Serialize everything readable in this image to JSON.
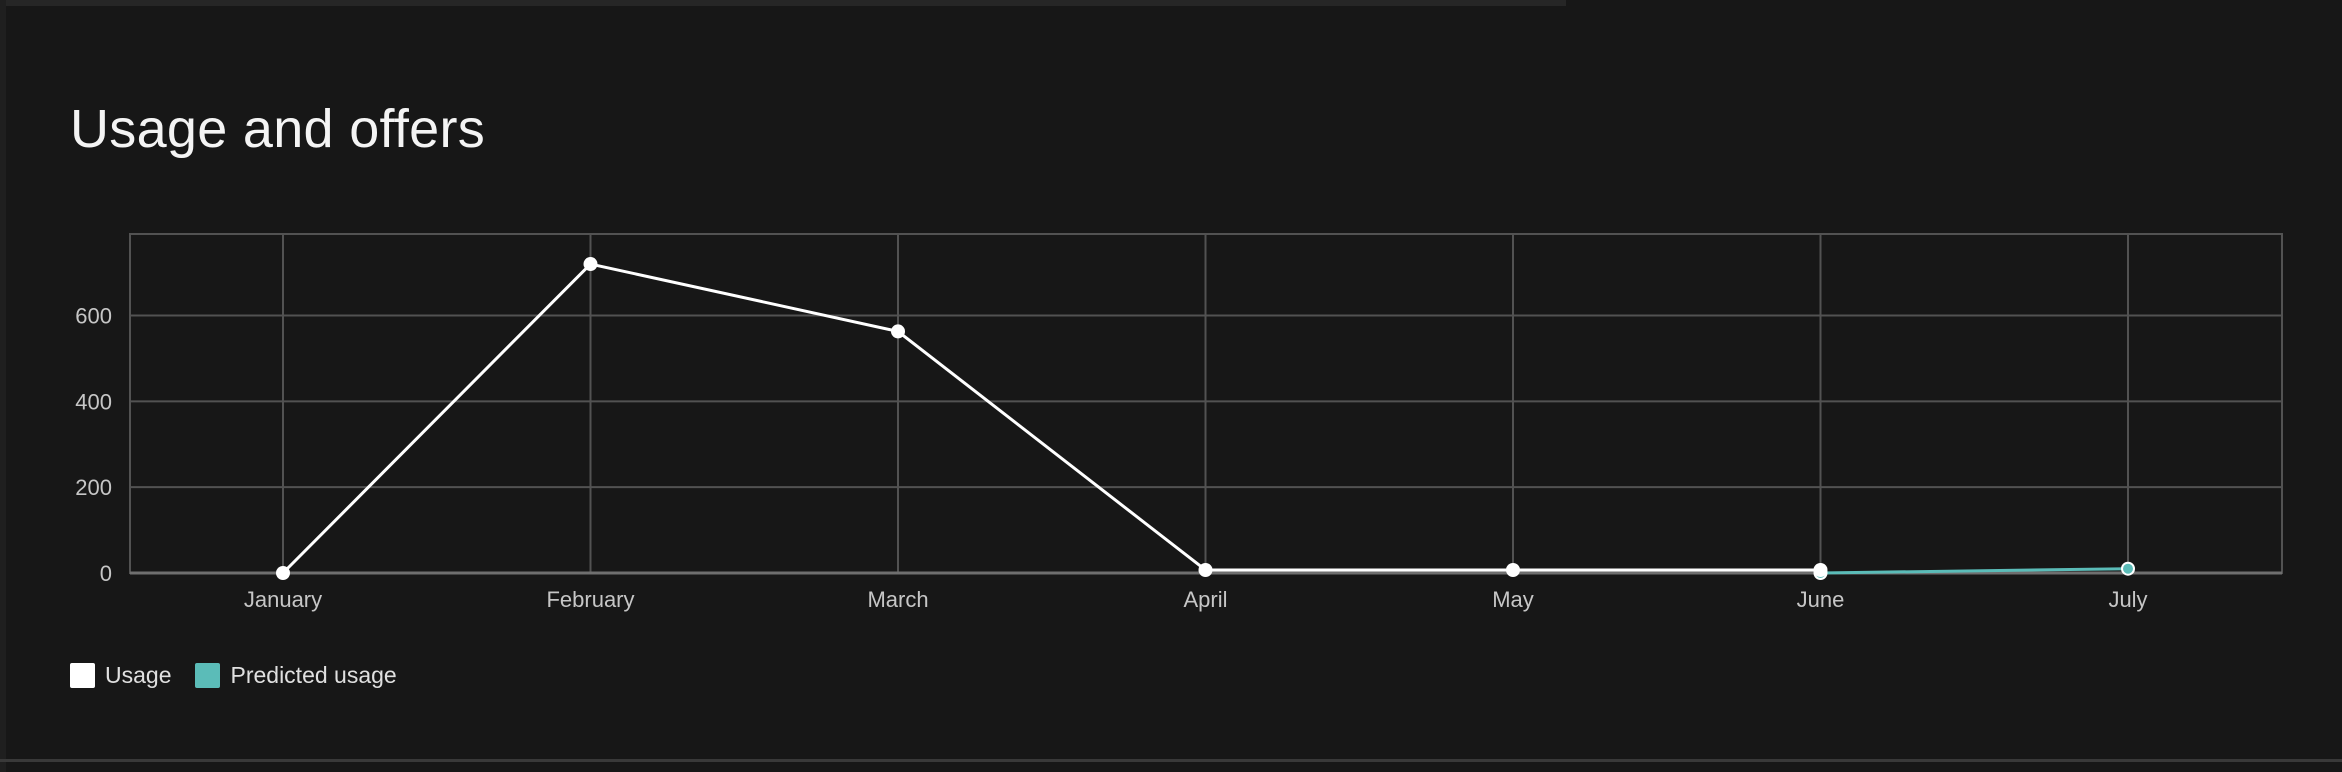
{
  "page": {
    "title": "Usage and offers"
  },
  "legend": [
    {
      "label": "Usage",
      "color": "#ffffff",
      "swatch_icon": "square-swatch-icon"
    },
    {
      "label": "Predicted usage",
      "color": "#5bbcb8",
      "swatch_icon": "square-swatch-icon"
    }
  ],
  "chart_data": {
    "type": "line",
    "title": "",
    "xlabel": "",
    "ylabel": "",
    "categories": [
      "January",
      "February",
      "March",
      "April",
      "May",
      "June",
      "July"
    ],
    "yticks": [
      0,
      200,
      400,
      600
    ],
    "ylim": [
      0,
      790
    ],
    "grid": true,
    "legend_position": "bottom-left",
    "series": [
      {
        "name": "Usage",
        "color": "#ffffff",
        "values": [
          0,
          720,
          563,
          7,
          7,
          7,
          null
        ]
      },
      {
        "name": "Predicted usage",
        "color": "#5bbcb8",
        "values": [
          null,
          null,
          null,
          null,
          null,
          0,
          10
        ]
      }
    ]
  }
}
